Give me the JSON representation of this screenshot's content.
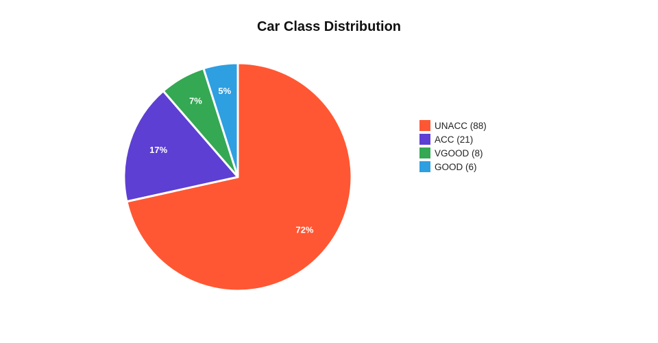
{
  "chart_data": {
    "type": "pie",
    "title": "Car Class Distribution",
    "categories": [
      "UNACC",
      "ACC",
      "VGOOD",
      "GOOD"
    ],
    "values": [
      88,
      21,
      8,
      6
    ],
    "slice_labels": [
      "72%",
      "17%",
      "7%",
      "5%"
    ],
    "legend_labels": [
      "UNACC (88)",
      "ACC (21)",
      "VGOOD (8)",
      "GOOD (6)"
    ],
    "colors": [
      "#ff5733",
      "#5d3fd3",
      "#34a853",
      "#2e9fe0"
    ],
    "legend_position": "right"
  }
}
